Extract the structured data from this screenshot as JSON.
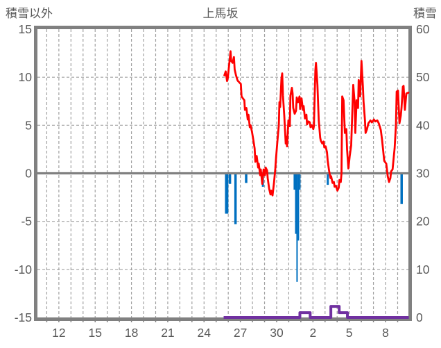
{
  "header": {
    "left_axis_title": "積雪以外",
    "title": "上馬坂",
    "right_axis_title": "積雪"
  },
  "chart_data": {
    "type": "line",
    "title": "上馬坂",
    "subtitle": "",
    "legend": "none",
    "background": "#FFFFFF",
    "colors": {
      "red_line": "#FF0000",
      "blue_bars": "#0070C0",
      "purple_line": "#7030A0",
      "frame": "#808080",
      "zero_line": "#808080",
      "grid": "#A0A0A0",
      "text": "#595959"
    },
    "left_axis": {
      "title": "積雪以外",
      "lim": [
        -15,
        15
      ],
      "tick_values": [
        15,
        10,
        5,
        0,
        -5,
        -10,
        -15
      ],
      "tick_labels": [
        "15",
        "10",
        "5",
        "0",
        "-5",
        "-10",
        "-15"
      ]
    },
    "right_axis": {
      "title": "積雪",
      "lim": [
        0,
        60
      ],
      "tick_values": [
        60,
        50,
        40,
        30,
        20,
        10,
        0
      ],
      "tick_labels": [
        "60",
        "50",
        "40",
        "30",
        "20",
        "10",
        "0"
      ]
    },
    "x_axis": {
      "lim": [
        0.23,
        30.89
      ],
      "note": "day-of-month ticks every 3 days (12..24 then 27,30 then 2,5,8 of next month), daily dashed gridlines",
      "tick_labels": [
        "12",
        "15",
        "18",
        "21",
        "24",
        "27",
        "30",
        "2",
        "5",
        "8"
      ],
      "tick_positions": [
        2,
        5,
        8,
        11,
        14,
        17,
        20,
        23,
        26,
        29
      ],
      "gridline_days": [
        1,
        2,
        3,
        4,
        5,
        6,
        7,
        8,
        9,
        10,
        11,
        12,
        13,
        14,
        15,
        16,
        17,
        18,
        19,
        20,
        21,
        22,
        23,
        24,
        25,
        26,
        27,
        28,
        29,
        30
      ]
    },
    "series": [
      {
        "name": "red-line-left-axis",
        "type": "line",
        "axis": "left",
        "color": "#FF0000",
        "points": [
          [
            15.68,
            10.2
          ],
          [
            15.79,
            10.6
          ],
          [
            15.9,
            9.6
          ],
          [
            15.96,
            9.9
          ],
          [
            16.19,
            12.7
          ],
          [
            16.24,
            11.7
          ],
          [
            16.36,
            11.5
          ],
          [
            16.47,
            12.1
          ],
          [
            16.53,
            10.8
          ],
          [
            16.64,
            10.2
          ],
          [
            16.76,
            9.7
          ],
          [
            16.81,
            9.6
          ],
          [
            17.04,
            9.3
          ],
          [
            17.1,
            8.0
          ],
          [
            17.21,
            7.8
          ],
          [
            17.33,
            7.6
          ],
          [
            17.38,
            6.6
          ],
          [
            17.5,
            6.8
          ],
          [
            17.61,
            5.6
          ],
          [
            17.67,
            6.1
          ],
          [
            17.78,
            4.8
          ],
          [
            17.84,
            5.0
          ],
          [
            17.95,
            4.4
          ],
          [
            18.07,
            3.5
          ],
          [
            18.18,
            2.6
          ],
          [
            18.24,
            1.2
          ],
          [
            18.35,
            1.8
          ],
          [
            18.47,
            0.6
          ],
          [
            18.52,
            1.0
          ],
          [
            18.64,
            -0.2
          ],
          [
            18.69,
            0.4
          ],
          [
            18.81,
            -1.1
          ],
          [
            18.86,
            -0.4
          ],
          [
            18.92,
            0.4
          ],
          [
            19.03,
            -0.2
          ],
          [
            19.09,
            0.6
          ],
          [
            19.21,
            0.3
          ],
          [
            19.26,
            -0.5
          ],
          [
            19.38,
            -1.6
          ],
          [
            19.49,
            -2.2
          ],
          [
            19.55,
            -1.8
          ],
          [
            19.66,
            -2.3
          ],
          [
            19.78,
            -1.0
          ],
          [
            19.89,
            0.5
          ],
          [
            19.95,
            1.6
          ],
          [
            20.06,
            3.3
          ],
          [
            20.18,
            5.0
          ],
          [
            20.23,
            7.4
          ],
          [
            20.29,
            6.9
          ],
          [
            20.4,
            9.9
          ],
          [
            20.46,
            10.4
          ],
          [
            20.52,
            8.1
          ],
          [
            20.63,
            6.0
          ],
          [
            20.75,
            3.1
          ],
          [
            20.8,
            3.8
          ],
          [
            20.86,
            2.8
          ],
          [
            20.97,
            5.5
          ],
          [
            21.09,
            4.9
          ],
          [
            21.14,
            8.1
          ],
          [
            21.26,
            8.9
          ],
          [
            21.32,
            8.3
          ],
          [
            21.37,
            6.8
          ],
          [
            21.49,
            6.2
          ],
          [
            21.6,
            6.5
          ],
          [
            21.66,
            7.9
          ],
          [
            21.77,
            7.4
          ],
          [
            21.89,
            8.0
          ],
          [
            21.94,
            6.7
          ],
          [
            22.06,
            7.8
          ],
          [
            22.17,
            6.6
          ],
          [
            22.23,
            7.0
          ],
          [
            22.34,
            5.7
          ],
          [
            22.46,
            6.1
          ],
          [
            22.51,
            5.1
          ],
          [
            22.63,
            5.4
          ],
          [
            22.74,
            5.3
          ],
          [
            22.8,
            4.8
          ],
          [
            22.91,
            5.0
          ],
          [
            23.03,
            4.6
          ],
          [
            23.08,
            4.9
          ],
          [
            23.2,
            10.7
          ],
          [
            23.25,
            11.5
          ],
          [
            23.31,
            10.4
          ],
          [
            23.37,
            9.2
          ],
          [
            23.48,
            5.5
          ],
          [
            23.6,
            3.7
          ],
          [
            23.65,
            3.4
          ],
          [
            23.77,
            3.1
          ],
          [
            23.88,
            3.3
          ],
          [
            23.94,
            2.7
          ],
          [
            24.05,
            2.8
          ],
          [
            24.16,
            2.2
          ],
          [
            24.22,
            1.3
          ],
          [
            24.33,
            0.3
          ],
          [
            24.45,
            -0.5
          ],
          [
            24.5,
            -0.3
          ],
          [
            24.62,
            -1.0
          ],
          [
            24.73,
            -0.9
          ],
          [
            24.79,
            -1.4
          ],
          [
            24.9,
            -1.3
          ],
          [
            25.02,
            -1.8
          ],
          [
            25.13,
            -1.5
          ],
          [
            25.19,
            -0.7
          ],
          [
            25.3,
            -0.9
          ],
          [
            25.36,
            0.0
          ],
          [
            25.42,
            8.0
          ],
          [
            25.53,
            7.6
          ],
          [
            25.64,
            4.2
          ],
          [
            25.76,
            4.6
          ],
          [
            25.82,
            2.5
          ],
          [
            25.93,
            0.5
          ],
          [
            26.04,
            1.8
          ],
          [
            26.16,
            2.9
          ],
          [
            26.33,
            9.2
          ],
          [
            26.44,
            7.5
          ],
          [
            26.5,
            4.2
          ],
          [
            26.61,
            7.6
          ],
          [
            26.73,
            6.8
          ],
          [
            26.78,
            9.7
          ],
          [
            26.9,
            8.0
          ],
          [
            27.01,
            11.7
          ],
          [
            27.13,
            9.0
          ],
          [
            27.18,
            7.5
          ],
          [
            27.3,
            5.5
          ],
          [
            27.35,
            4.2
          ],
          [
            27.47,
            4.6
          ],
          [
            27.58,
            5.2
          ],
          [
            27.75,
            5.5
          ],
          [
            27.87,
            5.3
          ],
          [
            28.04,
            5.6
          ],
          [
            28.15,
            5.4
          ],
          [
            28.32,
            5.5
          ],
          [
            28.44,
            5.2
          ],
          [
            28.49,
            5.0
          ],
          [
            28.61,
            4.5
          ],
          [
            28.72,
            3.4
          ],
          [
            28.89,
            1.3
          ],
          [
            29.06,
            1.0
          ],
          [
            29.18,
            -0.3
          ],
          [
            29.29,
            -0.9
          ],
          [
            29.4,
            -0.5
          ],
          [
            29.46,
            0.2
          ],
          [
            29.58,
            0.4
          ],
          [
            29.75,
            2.6
          ],
          [
            29.86,
            5.0
          ],
          [
            29.92,
            8.5
          ],
          [
            30.03,
            8.6
          ],
          [
            30.15,
            5.2
          ],
          [
            30.26,
            6.0
          ],
          [
            30.32,
            6.8
          ],
          [
            30.43,
            9.0
          ],
          [
            30.49,
            9.1
          ],
          [
            30.6,
            6.6
          ],
          [
            30.72,
            8.3
          ],
          [
            30.89,
            8.4
          ]
        ]
      },
      {
        "name": "blue-bars-left-axis",
        "type": "bar",
        "axis": "left",
        "color": "#0070C0",
        "bars": [
          [
            15.73,
            16.01,
            -4.2
          ],
          [
            16.04,
            16.24,
            -1.1
          ],
          [
            16.5,
            16.7,
            -5.3
          ],
          [
            17.38,
            17.58,
            -1.0
          ],
          [
            18.78,
            18.95,
            -1.4
          ],
          [
            21.4,
            21.52,
            -1.7
          ],
          [
            21.52,
            21.63,
            -6.3
          ],
          [
            21.63,
            21.74,
            -11.3
          ],
          [
            21.74,
            21.86,
            -7.0
          ],
          [
            21.86,
            21.97,
            -1.7
          ],
          [
            24.14,
            24.31,
            -1.2
          ],
          [
            30.23,
            30.43,
            -3.2
          ]
        ]
      },
      {
        "name": "purple-step-line-right-axis",
        "type": "step-line",
        "axis": "right",
        "color": "#7030A0",
        "points": [
          [
            15.62,
            0
          ],
          [
            21.92,
            0
          ],
          [
            21.92,
            1.0
          ],
          [
            22.77,
            1.0
          ],
          [
            22.77,
            0
          ],
          [
            24.48,
            0
          ],
          [
            24.48,
            2.3
          ],
          [
            25.17,
            2.3
          ],
          [
            25.17,
            1.0
          ],
          [
            25.85,
            1.0
          ],
          [
            25.85,
            0
          ],
          [
            30.92,
            0
          ]
        ]
      }
    ]
  }
}
